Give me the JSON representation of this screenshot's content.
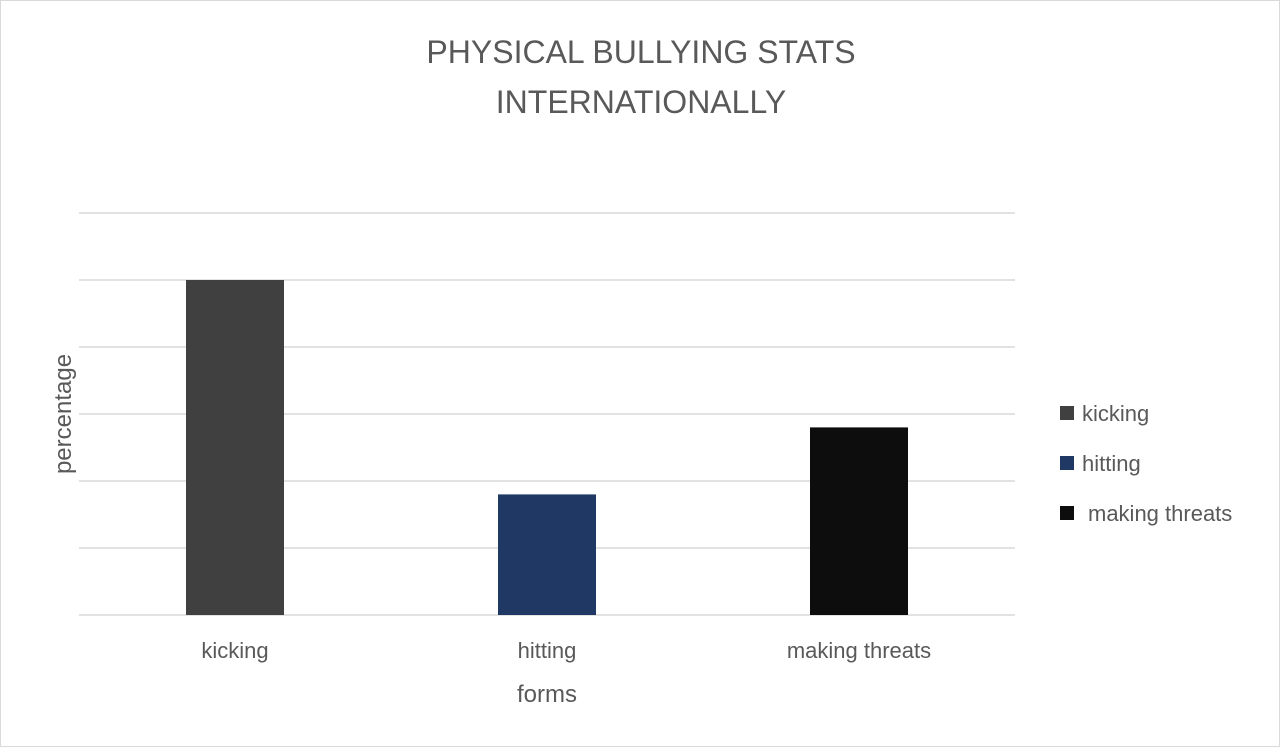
{
  "chart_data": {
    "type": "bar",
    "title_lines": [
      "PHYSICAL BULLYING STATS",
      "INTERNATIONALLY"
    ],
    "xlabel": "forms",
    "ylabel": "percentage",
    "categories": [
      "kicking",
      "hitting",
      "making threats"
    ],
    "values": [
      5,
      1.8,
      2.8
    ],
    "colors": [
      "#404040",
      "#203864",
      "#0d0d0d"
    ],
    "ylim": [
      0,
      6
    ],
    "ytick_step": 1,
    "y_tick_labels_shown": false,
    "grid": true,
    "legend": {
      "placement": "right",
      "entries": [
        "kicking",
        "hitting",
        "making threats"
      ]
    }
  }
}
